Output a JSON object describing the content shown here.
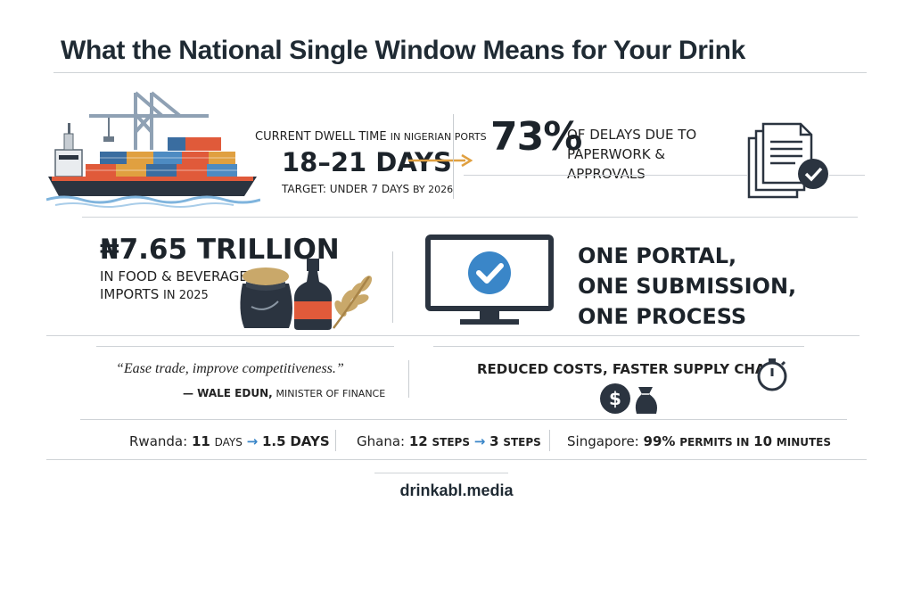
{
  "title": "What the National Single Window Means for Your Drink",
  "dwell": {
    "label_big": "CURRENT DWELL TIME",
    "label_small": "IN NIGERIAN PORTS",
    "value": "18–21 DAYS",
    "target_big": "TARGET: UNDER 7 DAYS",
    "target_small": "BY 2026"
  },
  "delays": {
    "percent": "73%",
    "text": "OF DELAYS DUE TO PAPERWORK & APPROVALS"
  },
  "imports": {
    "amount": "₦7.65 TRILLION",
    "text_big": "IN FOOD & BEVERAGE IMPORTS",
    "text_small": "IN 2025"
  },
  "portal": {
    "line1": "ONE PORTAL,",
    "line2": "ONE SUBMISSION,",
    "line3": "ONE PROCESS"
  },
  "quote": {
    "text": "“Ease trade, improve competitiveness.”",
    "name": "— WALE EDUN,",
    "role": "MINISTER OF FINANCE"
  },
  "benefit": {
    "text": "REDUCED COSTS, FASTER SUPPLY CHAIN"
  },
  "comparisons": {
    "rwanda": {
      "country": "Rwanda:",
      "from_num": "11",
      "from_unit": "DAYS",
      "to_num": "1.5",
      "to_unit": "DAYS"
    },
    "ghana": {
      "country": "Ghana:",
      "from_num": "12",
      "from_unit": "STEPS",
      "to_num": "3",
      "to_unit": "STEPS"
    },
    "singapore": {
      "country": "Singapore:",
      "pct": "99%",
      "mid": "PERMITS IN",
      "num": "10",
      "unit": "MINUTES"
    }
  },
  "brand": "drinkabl.media",
  "icons": {
    "ship": "cargo-ship-icon",
    "documents": "documents-check-icon",
    "goods": "food-beverage-icon",
    "monitor": "monitor-check-icon",
    "stopwatch": "stopwatch-icon",
    "money": "money-bag-icon"
  },
  "colors": {
    "accent_orange": "#e0a040",
    "accent_blue": "#3a86c8",
    "dark": "#1c232a"
  }
}
